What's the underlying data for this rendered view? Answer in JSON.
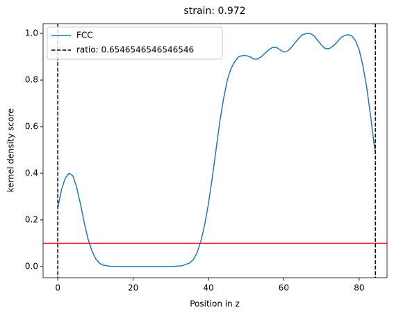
{
  "chart_data": {
    "type": "line",
    "title": "strain: 0.972",
    "xlabel": "Position in z",
    "ylabel": "kernel density score",
    "xlim": [
      -3.9,
      87.4
    ],
    "ylim": [
      -0.048,
      1.042
    ],
    "xticks": [
      0,
      20,
      40,
      60,
      80
    ],
    "yticks": [
      {
        "value": 0,
        "label": "0.0"
      },
      0.2,
      0.4,
      0.6,
      0.8,
      {
        "value": 1,
        "label": "1.0"
      }
    ],
    "legend": "upper left",
    "series": [
      {
        "name": "FCC",
        "color": "#1f77b4",
        "x": [
          0,
          1,
          2,
          3,
          4,
          5,
          6,
          7,
          8,
          9,
          10,
          11,
          12,
          14,
          16,
          20,
          25,
          30,
          33,
          35,
          36,
          37,
          38,
          39,
          40,
          41,
          42,
          43,
          44,
          45,
          46,
          47,
          48,
          49,
          50,
          51,
          52,
          53,
          54,
          55,
          56,
          57,
          58,
          59,
          60,
          61,
          62,
          63,
          64,
          65,
          66,
          67,
          68,
          69,
          70,
          71,
          72,
          73,
          74,
          75,
          76,
          77,
          78,
          79,
          80,
          81,
          82,
          83,
          84,
          84.3
        ],
        "values": [
          0.25,
          0.33,
          0.38,
          0.4,
          0.39,
          0.34,
          0.27,
          0.19,
          0.12,
          0.07,
          0.035,
          0.015,
          0.006,
          0.001,
          0,
          0,
          0,
          0,
          0.003,
          0.015,
          0.03,
          0.06,
          0.11,
          0.18,
          0.27,
          0.38,
          0.5,
          0.62,
          0.72,
          0.8,
          0.85,
          0.88,
          0.9,
          0.905,
          0.905,
          0.9,
          0.89,
          0.89,
          0.9,
          0.915,
          0.93,
          0.94,
          0.94,
          0.93,
          0.92,
          0.925,
          0.94,
          0.96,
          0.98,
          0.995,
          1,
          1,
          0.99,
          0.97,
          0.95,
          0.935,
          0.935,
          0.945,
          0.96,
          0.98,
          0.99,
          0.995,
          0.99,
          0.97,
          0.93,
          0.86,
          0.77,
          0.65,
          0.52,
          0.49
        ]
      }
    ],
    "vlines": {
      "name": "ratio: 0.6546546546546546",
      "color": "#000000",
      "values": [
        0,
        84.3
      ]
    },
    "hline": {
      "color": "#ff0000",
      "value": 0.1
    }
  }
}
